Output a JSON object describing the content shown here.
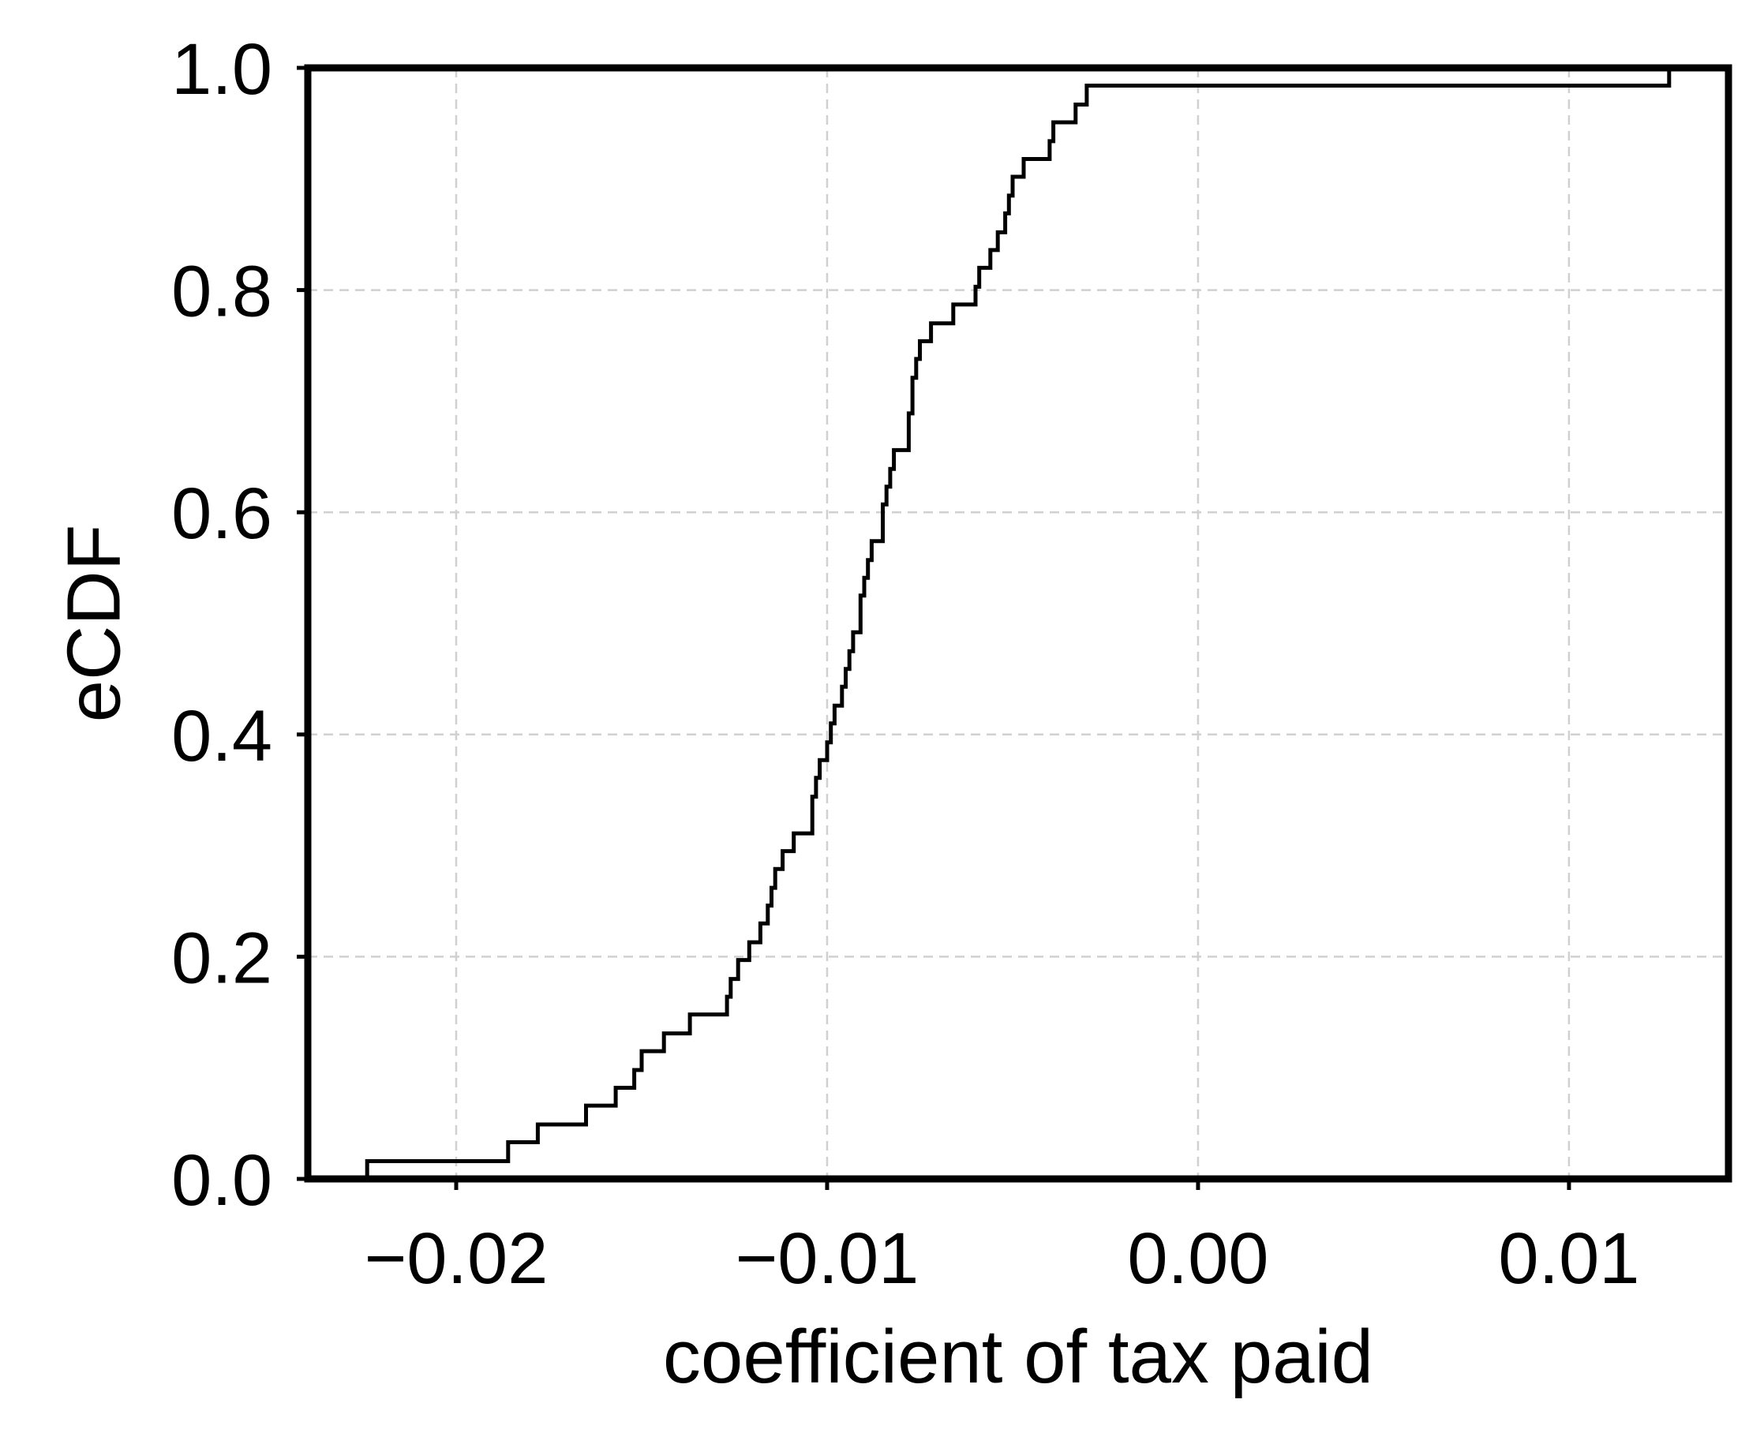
{
  "chart_data": {
    "type": "line",
    "step": true,
    "title": "",
    "xlabel": "coefficient of tax paid",
    "ylabel": "eCDF",
    "xlim": [
      -0.024,
      0.0143
    ],
    "ylim": [
      0.0,
      1.0
    ],
    "xticks": [
      -0.02,
      -0.01,
      0.0,
      0.01
    ],
    "xtick_labels": [
      "−0.02",
      "−0.01",
      "0.00",
      "0.01"
    ],
    "yticks": [
      0.0,
      0.2,
      0.4,
      0.6,
      0.8,
      1.0
    ],
    "ytick_labels": [
      "0.0",
      "0.2",
      "0.4",
      "0.6",
      "0.8",
      "1.0"
    ],
    "grid": true,
    "series": [
      {
        "color": "#000000",
        "points": [
          [
            -0.0224,
            0.0
          ],
          [
            -0.0224,
            0.016
          ],
          [
            -0.0186,
            0.016
          ],
          [
            -0.0186,
            0.033
          ],
          [
            -0.0178,
            0.033
          ],
          [
            -0.0178,
            0.049
          ],
          [
            -0.0165,
            0.049
          ],
          [
            -0.0165,
            0.066
          ],
          [
            -0.0157,
            0.066
          ],
          [
            -0.0157,
            0.082
          ],
          [
            -0.0152,
            0.082
          ],
          [
            -0.0152,
            0.098
          ],
          [
            -0.015,
            0.098
          ],
          [
            -0.015,
            0.115
          ],
          [
            -0.0144,
            0.115
          ],
          [
            -0.0144,
            0.131
          ],
          [
            -0.0137,
            0.131
          ],
          [
            -0.0137,
            0.148
          ],
          [
            -0.0127,
            0.148
          ],
          [
            -0.0127,
            0.164
          ],
          [
            -0.0126,
            0.164
          ],
          [
            -0.0126,
            0.18
          ],
          [
            -0.0124,
            0.18
          ],
          [
            -0.0124,
            0.197
          ],
          [
            -0.0121,
            0.197
          ],
          [
            -0.0121,
            0.213
          ],
          [
            -0.0118,
            0.213
          ],
          [
            -0.0118,
            0.23
          ],
          [
            -0.0116,
            0.23
          ],
          [
            -0.0116,
            0.246
          ],
          [
            -0.0115,
            0.246
          ],
          [
            -0.0115,
            0.262
          ],
          [
            -0.0114,
            0.262
          ],
          [
            -0.0114,
            0.279
          ],
          [
            -0.0112,
            0.279
          ],
          [
            -0.0112,
            0.295
          ],
          [
            -0.0109,
            0.295
          ],
          [
            -0.0109,
            0.311
          ],
          [
            -0.0104,
            0.311
          ],
          [
            -0.0104,
            0.344
          ],
          [
            -0.0103,
            0.344
          ],
          [
            -0.0103,
            0.361
          ],
          [
            -0.0102,
            0.361
          ],
          [
            -0.0102,
            0.377
          ],
          [
            -0.01,
            0.377
          ],
          [
            -0.01,
            0.393
          ],
          [
            -0.0099,
            0.393
          ],
          [
            -0.0099,
            0.41
          ],
          [
            -0.0098,
            0.41
          ],
          [
            -0.0098,
            0.426
          ],
          [
            -0.0096,
            0.426
          ],
          [
            -0.0096,
            0.443
          ],
          [
            -0.0095,
            0.443
          ],
          [
            -0.0095,
            0.459
          ],
          [
            -0.0094,
            0.459
          ],
          [
            -0.0094,
            0.475
          ],
          [
            -0.0093,
            0.475
          ],
          [
            -0.0093,
            0.492
          ],
          [
            -0.0091,
            0.492
          ],
          [
            -0.0091,
            0.525
          ],
          [
            -0.009,
            0.525
          ],
          [
            -0.009,
            0.541
          ],
          [
            -0.0089,
            0.541
          ],
          [
            -0.0089,
            0.557
          ],
          [
            -0.0088,
            0.557
          ],
          [
            -0.0088,
            0.574
          ],
          [
            -0.0085,
            0.574
          ],
          [
            -0.0085,
            0.607
          ],
          [
            -0.0084,
            0.607
          ],
          [
            -0.0084,
            0.623
          ],
          [
            -0.0083,
            0.623
          ],
          [
            -0.0083,
            0.639
          ],
          [
            -0.0082,
            0.639
          ],
          [
            -0.0082,
            0.656
          ],
          [
            -0.0078,
            0.656
          ],
          [
            -0.0078,
            0.689
          ],
          [
            -0.0077,
            0.689
          ],
          [
            -0.0077,
            0.721
          ],
          [
            -0.0076,
            0.721
          ],
          [
            -0.0076,
            0.738
          ],
          [
            -0.0075,
            0.738
          ],
          [
            -0.0075,
            0.754
          ],
          [
            -0.0072,
            0.754
          ],
          [
            -0.0072,
            0.77
          ],
          [
            -0.0066,
            0.77
          ],
          [
            -0.0066,
            0.787
          ],
          [
            -0.006,
            0.787
          ],
          [
            -0.006,
            0.803
          ],
          [
            -0.0059,
            0.803
          ],
          [
            -0.0059,
            0.82
          ],
          [
            -0.0056,
            0.82
          ],
          [
            -0.0056,
            0.836
          ],
          [
            -0.0054,
            0.836
          ],
          [
            -0.0054,
            0.852
          ],
          [
            -0.0052,
            0.852
          ],
          [
            -0.0052,
            0.869
          ],
          [
            -0.0051,
            0.869
          ],
          [
            -0.0051,
            0.885
          ],
          [
            -0.005,
            0.885
          ],
          [
            -0.005,
            0.902
          ],
          [
            -0.0047,
            0.902
          ],
          [
            -0.0047,
            0.918
          ],
          [
            -0.004,
            0.918
          ],
          [
            -0.004,
            0.934
          ],
          [
            -0.0039,
            0.934
          ],
          [
            -0.0039,
            0.951
          ],
          [
            -0.0033,
            0.951
          ],
          [
            -0.0033,
            0.967
          ],
          [
            -0.003,
            0.967
          ],
          [
            -0.003,
            0.984
          ],
          [
            0.0127,
            0.984
          ],
          [
            0.0127,
            1.0
          ]
        ]
      }
    ]
  }
}
